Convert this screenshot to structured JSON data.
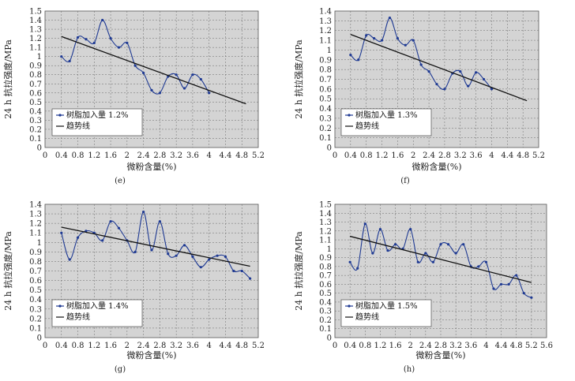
{
  "chart_data": [
    {
      "panel": "(e)",
      "type": "line",
      "xlabel": "微粉含量(%)",
      "ylabel": "24 h 抗拉强度/MPa",
      "xlim": [
        0,
        5.2
      ],
      "xticks": [
        0,
        0.4,
        0.8,
        1.2,
        1.6,
        2.0,
        2.4,
        2.8,
        3.2,
        3.6,
        4.0,
        4.4,
        4.8,
        5.2
      ],
      "ylim": [
        0,
        1.5
      ],
      "yticks": [
        0,
        0.1,
        0.2,
        0.3,
        0.4,
        0.5,
        0.6,
        0.7,
        0.8,
        0.9,
        1.0,
        1.1,
        1.2,
        1.3,
        1.4,
        1.5
      ],
      "grid": true,
      "legend_position": "bottom-left",
      "series": [
        {
          "name": "树脂加入量 1.2%",
          "style": "smooth-line-markers",
          "color": "#1f3a93",
          "x": [
            0.4,
            0.6,
            0.8,
            1.0,
            1.2,
            1.4,
            1.6,
            1.8,
            2.0,
            2.2,
            2.4,
            2.6,
            2.8,
            3.0,
            3.2,
            3.4,
            3.6,
            3.8,
            4.0
          ],
          "y": [
            1.0,
            0.95,
            1.21,
            1.19,
            1.15,
            1.4,
            1.2,
            1.1,
            1.15,
            0.9,
            0.82,
            0.63,
            0.6,
            0.78,
            0.8,
            0.65,
            0.8,
            0.75,
            0.6
          ]
        },
        {
          "name": "趋势线",
          "style": "trendline",
          "color": "#111111",
          "x": [
            0.4,
            4.9
          ],
          "y": [
            1.22,
            0.48
          ]
        }
      ]
    },
    {
      "panel": "(f)",
      "type": "line",
      "xlabel": "微粉含量(%)",
      "ylabel": "24 h 抗拉强度/MPa",
      "xlim": [
        0,
        5.2
      ],
      "xticks": [
        0,
        0.4,
        0.8,
        1.2,
        1.6,
        2.0,
        2.4,
        2.8,
        3.2,
        3.6,
        4.0,
        4.4,
        4.8,
        5.2
      ],
      "ylim": [
        0,
        1.4
      ],
      "yticks": [
        0,
        0.1,
        0.2,
        0.3,
        0.4,
        0.5,
        0.6,
        0.7,
        0.8,
        0.9,
        1.0,
        1.1,
        1.2,
        1.3,
        1.4
      ],
      "grid": true,
      "legend_position": "bottom-left",
      "series": [
        {
          "name": "树脂加入量 1.3%",
          "style": "smooth-line-markers",
          "color": "#1f3a93",
          "x": [
            0.4,
            0.6,
            0.8,
            1.0,
            1.2,
            1.4,
            1.6,
            1.8,
            2.0,
            2.2,
            2.4,
            2.6,
            2.8,
            3.0,
            3.2,
            3.4,
            3.6,
            3.8,
            4.0
          ],
          "y": [
            0.95,
            0.9,
            1.15,
            1.12,
            1.1,
            1.33,
            1.12,
            1.05,
            1.1,
            0.85,
            0.78,
            0.65,
            0.6,
            0.76,
            0.78,
            0.63,
            0.77,
            0.7,
            0.6
          ]
        },
        {
          "name": "趋势线",
          "style": "trendline",
          "color": "#111111",
          "x": [
            0.4,
            4.9
          ],
          "y": [
            1.16,
            0.48
          ]
        }
      ]
    },
    {
      "panel": "(g)",
      "type": "line",
      "xlabel": "微粉含量(%)",
      "ylabel": "24 h 抗拉强度/MPa",
      "xlim": [
        0,
        5.2
      ],
      "xticks": [
        0,
        0.4,
        0.8,
        1.2,
        1.6,
        2.0,
        2.4,
        2.8,
        3.2,
        3.6,
        4.0,
        4.4,
        4.8,
        5.2
      ],
      "ylim": [
        0,
        1.4
      ],
      "yticks": [
        0,
        0.1,
        0.2,
        0.3,
        0.4,
        0.5,
        0.6,
        0.7,
        0.8,
        0.9,
        1.0,
        1.1,
        1.2,
        1.3,
        1.4
      ],
      "grid": true,
      "legend_position": "bottom-left",
      "series": [
        {
          "name": "树脂加入量 1.4%",
          "style": "smooth-line-markers",
          "color": "#1f3a93",
          "x": [
            0.4,
            0.6,
            0.8,
            1.0,
            1.2,
            1.4,
            1.6,
            1.8,
            2.0,
            2.2,
            2.4,
            2.6,
            2.8,
            3.0,
            3.2,
            3.4,
            3.6,
            3.8,
            4.0,
            4.2,
            4.4,
            4.6,
            4.8,
            5.0
          ],
          "y": [
            1.1,
            0.82,
            1.05,
            1.12,
            1.1,
            1.02,
            1.22,
            1.15,
            1.02,
            0.9,
            1.32,
            0.92,
            1.22,
            0.88,
            0.86,
            0.97,
            0.85,
            0.74,
            0.82,
            0.86,
            0.85,
            0.7,
            0.7,
            0.62
          ]
        },
        {
          "name": "趋势线",
          "style": "trendline",
          "color": "#111111",
          "x": [
            0.4,
            5.0
          ],
          "y": [
            1.16,
            0.75
          ]
        }
      ]
    },
    {
      "panel": "(h)",
      "type": "line",
      "xlabel": "微粉含量(%)",
      "ylabel": "24 h 抗拉强度/MPa",
      "xlim": [
        0,
        5.6
      ],
      "xticks": [
        0,
        0.4,
        0.8,
        1.2,
        1.6,
        2.0,
        2.4,
        2.8,
        3.2,
        3.6,
        4.0,
        4.4,
        4.8,
        5.2,
        5.6
      ],
      "ylim": [
        0,
        1.5
      ],
      "yticks": [
        0,
        0.1,
        0.2,
        0.3,
        0.4,
        0.5,
        0.6,
        0.7,
        0.8,
        0.9,
        1.0,
        1.1,
        1.2,
        1.3,
        1.4,
        1.5
      ],
      "grid": true,
      "legend_position": "bottom-left",
      "series": [
        {
          "name": "树脂加入量 1.5%",
          "style": "smooth-line-markers",
          "color": "#1f3a93",
          "x": [
            0.4,
            0.6,
            0.8,
            1.0,
            1.2,
            1.4,
            1.6,
            1.8,
            2.0,
            2.2,
            2.4,
            2.6,
            2.8,
            3.0,
            3.2,
            3.4,
            3.6,
            3.8,
            4.0,
            4.2,
            4.4,
            4.6,
            4.8,
            5.0,
            5.2
          ],
          "y": [
            0.85,
            0.78,
            1.28,
            0.95,
            1.22,
            0.98,
            1.05,
            1.0,
            1.22,
            0.85,
            0.95,
            0.85,
            1.05,
            1.05,
            0.95,
            1.05,
            0.8,
            0.8,
            0.85,
            0.55,
            0.6,
            0.6,
            0.7,
            0.5,
            0.45
          ]
        },
        {
          "name": "趋势线",
          "style": "trendline",
          "color": "#111111",
          "x": [
            0.4,
            5.2
          ],
          "y": [
            1.14,
            0.62
          ]
        }
      ]
    }
  ]
}
